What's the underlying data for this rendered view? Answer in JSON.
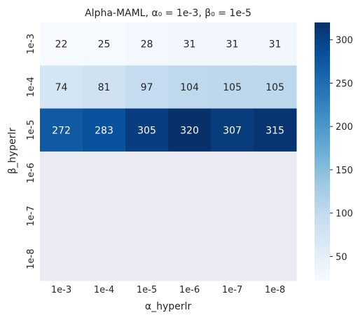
{
  "chart_data": {
    "type": "heatmap",
    "title": "Alpha-MAML, α₀ = 1e-3, β₀ = 1e-5",
    "xlabel": "α_hyperlr",
    "ylabel": "β_hyperlr",
    "x_categories": [
      "1e-3",
      "1e-4",
      "1e-5",
      "1e-6",
      "1e-7",
      "1e-8"
    ],
    "y_categories": [
      "1e-3",
      "1e-4",
      "1e-5",
      "1e-6",
      "1e-7",
      "1e-8"
    ],
    "values": [
      [
        22,
        25,
        28,
        31,
        31,
        31
      ],
      [
        74,
        81,
        97,
        104,
        105,
        105
      ],
      [
        272,
        283,
        305,
        320,
        307,
        315
      ],
      [
        null,
        null,
        null,
        null,
        null,
        null
      ],
      [
        null,
        null,
        null,
        null,
        null,
        null
      ],
      [
        null,
        null,
        null,
        null,
        null,
        null
      ]
    ],
    "colormap": "Blues",
    "missing_color": "#eaeaf2",
    "colorbar": {
      "min": 22,
      "max": 320,
      "ticks": [
        50,
        100,
        150,
        200,
        250,
        300
      ]
    },
    "grid": false
  }
}
